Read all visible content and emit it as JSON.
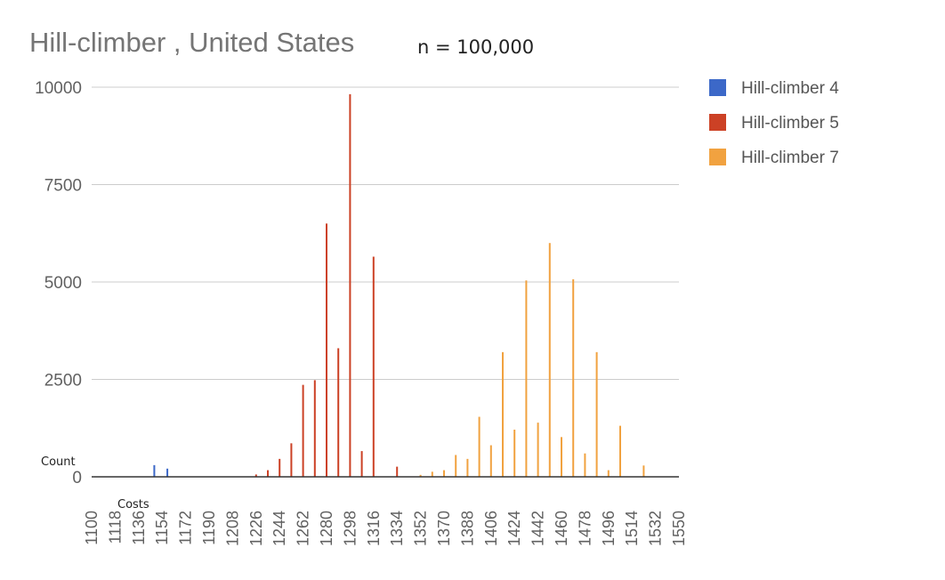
{
  "chart_data": {
    "type": "bar",
    "title": "Hill-climber , United States",
    "subtitle": "n = 100,000",
    "ylabel": "Count",
    "xlabel": "Costs",
    "ylim": [
      0,
      10000
    ],
    "xlim": [
      1100,
      1550
    ],
    "y_ticks": [
      "0",
      "2500",
      "5000",
      "7500",
      "10000"
    ],
    "x_ticks": [
      "1100",
      "1118",
      "1136",
      "1154",
      "1172",
      "1190",
      "1208",
      "1226",
      "1244",
      "1262",
      "1280",
      "1298",
      "1316",
      "1334",
      "1352",
      "1370",
      "1388",
      "1406",
      "1424",
      "1442",
      "1460",
      "1478",
      "1496",
      "1514",
      "1532",
      "1550"
    ],
    "grid": true,
    "legend_position": "right",
    "series": [
      {
        "name": "Hill-climber 4",
        "color": "#3c68c8",
        "points": [
          {
            "x": 1148,
            "y": 300
          },
          {
            "x": 1158,
            "y": 210
          }
        ]
      },
      {
        "name": "Hill-climber 5",
        "color": "#cc4125",
        "points": [
          {
            "x": 1226,
            "y": 60
          },
          {
            "x": 1235,
            "y": 170
          },
          {
            "x": 1244,
            "y": 460
          },
          {
            "x": 1253,
            "y": 860
          },
          {
            "x": 1262,
            "y": 2360
          },
          {
            "x": 1271,
            "y": 2480
          },
          {
            "x": 1280,
            "y": 6500
          },
          {
            "x": 1289,
            "y": 3300
          },
          {
            "x": 1298,
            "y": 9820
          },
          {
            "x": 1307,
            "y": 660
          },
          {
            "x": 1316,
            "y": 5650
          },
          {
            "x": 1334,
            "y": 260
          }
        ]
      },
      {
        "name": "Hill-climber 7",
        "color": "#f1a240",
        "points": [
          {
            "x": 1352,
            "y": 50
          },
          {
            "x": 1361,
            "y": 130
          },
          {
            "x": 1370,
            "y": 170
          },
          {
            "x": 1379,
            "y": 560
          },
          {
            "x": 1388,
            "y": 460
          },
          {
            "x": 1397,
            "y": 1540
          },
          {
            "x": 1406,
            "y": 810
          },
          {
            "x": 1415,
            "y": 3200
          },
          {
            "x": 1424,
            "y": 1210
          },
          {
            "x": 1433,
            "y": 5040
          },
          {
            "x": 1442,
            "y": 1390
          },
          {
            "x": 1451,
            "y": 6000
          },
          {
            "x": 1460,
            "y": 1020
          },
          {
            "x": 1469,
            "y": 5070
          },
          {
            "x": 1478,
            "y": 600
          },
          {
            "x": 1487,
            "y": 3200
          },
          {
            "x": 1496,
            "y": 170
          },
          {
            "x": 1505,
            "y": 1310
          },
          {
            "x": 1523,
            "y": 290
          }
        ]
      }
    ]
  }
}
